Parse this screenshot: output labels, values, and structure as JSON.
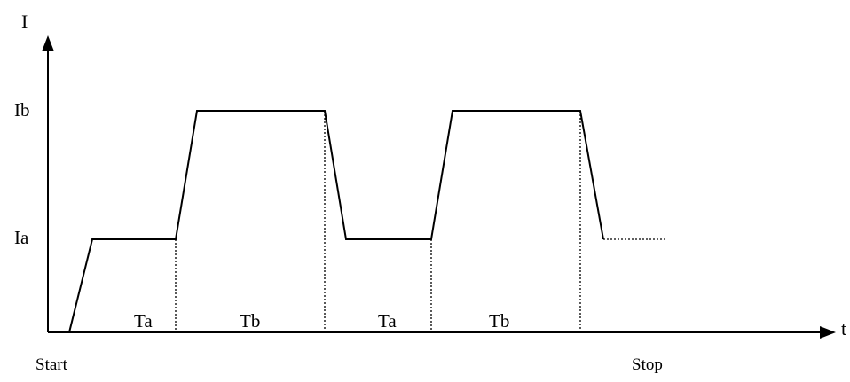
{
  "diagram": {
    "y_axis_label": "I",
    "x_axis_label": "t",
    "levels": {
      "high": "Ib",
      "low": "Ia"
    },
    "phases": [
      "Ta",
      "Tb",
      "Ta",
      "Tb"
    ],
    "events": {
      "start": "Start",
      "stop": "Stop"
    },
    "colors": {
      "line": "#000000",
      "background": "#ffffff"
    }
  }
}
